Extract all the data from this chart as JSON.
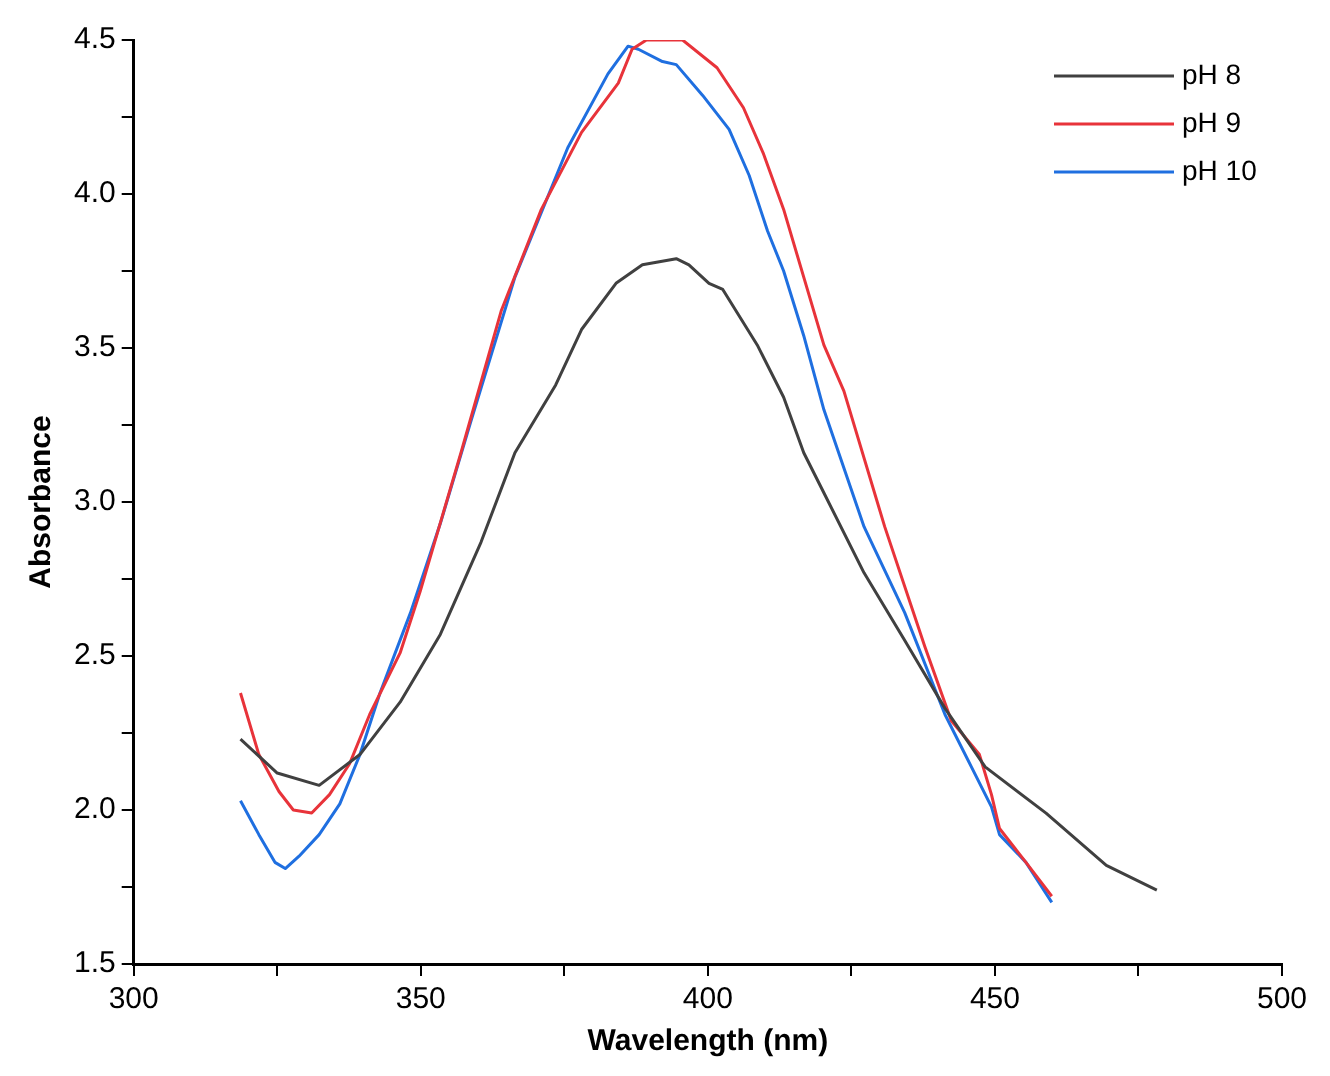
{
  "chart_data": {
    "type": "line",
    "xlabel": "Wavelength (nm)",
    "ylabel": "Absorbance",
    "xlim": [
      300,
      500
    ],
    "xticks": [
      300,
      {
        "value": 325,
        "label": null
      },
      350,
      {
        "value": 375,
        "label": null
      },
      400,
      {
        "value": 425,
        "label": null
      },
      450,
      {
        "value": 475,
        "label": null
      },
      500
    ],
    "ylim": [
      1.5,
      4.5
    ],
    "yticks": [
      {
        "value": 1.5,
        "label": "1.5"
      },
      {
        "value": 1.75,
        "label": null
      },
      {
        "value": 2,
        "label": "2.0"
      },
      {
        "value": 2.25,
        "label": null
      },
      {
        "value": 2.5,
        "label": "2.5"
      },
      {
        "value": 2.75,
        "label": null
      },
      {
        "value": 3,
        "label": "3.0"
      },
      {
        "value": 3.25,
        "label": null
      },
      {
        "value": 3.5,
        "label": "3.5"
      },
      {
        "value": 3.75,
        "label": null
      },
      {
        "value": 4,
        "label": "4.0"
      },
      {
        "value": 4.25,
        "label": null
      },
      {
        "value": 4.5,
        "label": "4.5"
      }
    ],
    "grid": false,
    "legend": "top right",
    "marker": "none",
    "line_style": "solid",
    "series": [
      {
        "name": "pH 8",
        "color": "#404040",
        "x": [
          318.6,
          325,
          332.3,
          339.4,
          346.4,
          353.4,
          360.5,
          366.4,
          373.5,
          378,
          384,
          388.6,
          394.5,
          396.7,
          400.2,
          402.6,
          408.6,
          413.2,
          416.7,
          420.2,
          427.2,
          434.3,
          441.3,
          448.3,
          458.9,
          469.4,
          478.2
        ],
        "values": [
          2.23,
          2.12,
          2.08,
          2.18,
          2.35,
          2.57,
          2.87,
          3.16,
          3.38,
          3.56,
          3.71,
          3.77,
          3.79,
          3.77,
          3.71,
          3.69,
          3.51,
          3.34,
          3.16,
          3.03,
          2.77,
          2.55,
          2.33,
          2.14,
          1.99,
          1.82,
          1.74
        ]
      },
      {
        "name": "pH 9",
        "color": "#e8333a",
        "x": [
          318.6,
          321.8,
          325.3,
          327.8,
          331,
          334.1,
          337.6,
          341.1,
          346.4,
          349.9,
          357,
          364,
          371,
          378,
          384.4,
          386.8,
          389.3,
          395.6,
          401.6,
          406.2,
          409.7,
          413.2,
          416.7,
          420.2,
          423.7,
          430.8,
          437.8,
          442.4,
          447.3,
          449.4,
          450.8,
          455.4,
          459.9
        ],
        "values": [
          2.38,
          2.18,
          2.06,
          2,
          1.99,
          2.05,
          2.15,
          2.31,
          2.51,
          2.71,
          3.16,
          3.62,
          3.95,
          4.2,
          4.36,
          4.47,
          4.5,
          4.5,
          4.41,
          4.28,
          4.13,
          3.95,
          3.73,
          3.51,
          3.36,
          2.92,
          2.53,
          2.29,
          2.18,
          2.05,
          1.94,
          1.83,
          1.72
        ]
      },
      {
        "name": "pH 10",
        "color": "#1f6fe0",
        "x": [
          318.6,
          321.8,
          324.6,
          326.4,
          328.8,
          332.3,
          335.9,
          339.4,
          342.9,
          348.2,
          353.4,
          358.7,
          366.4,
          375.6,
          382.6,
          386.1,
          387.9,
          392.1,
          394.5,
          399.1,
          403.7,
          407.2,
          410.4,
          413.2,
          416.7,
          420.2,
          427.2,
          434.3,
          441.3,
          445.9,
          449.4,
          450.8,
          455.4,
          459.9
        ],
        "values": [
          2.03,
          1.92,
          1.83,
          1.81,
          1.85,
          1.92,
          2.02,
          2.18,
          2.38,
          2.64,
          2.93,
          3.26,
          3.73,
          4.15,
          4.39,
          4.48,
          4.47,
          4.43,
          4.42,
          4.32,
          4.21,
          4.06,
          3.88,
          3.75,
          3.54,
          3.3,
          2.92,
          2.64,
          2.31,
          2.14,
          2.01,
          1.92,
          1.83,
          1.7
        ]
      }
    ]
  }
}
